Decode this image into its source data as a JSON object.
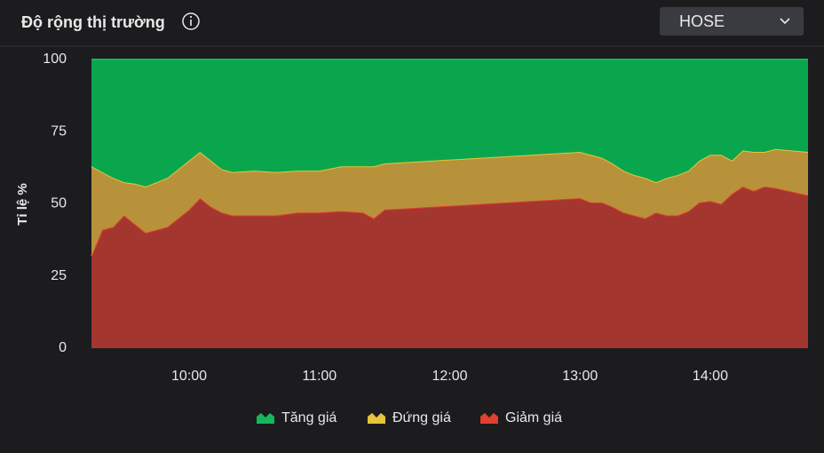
{
  "header": {
    "title": "Độ rộng thị trường",
    "selector": "HOSE"
  },
  "chart_data": {
    "type": "stacked_area",
    "y_label": "Tỉ lệ %",
    "x": [
      "09:15",
      "09:20",
      "09:25",
      "09:30",
      "09:35",
      "09:40",
      "09:45",
      "09:50",
      "09:55",
      "10:00",
      "10:05",
      "10:10",
      "10:15",
      "10:20",
      "10:30",
      "10:40",
      "10:50",
      "11:00",
      "11:10",
      "11:20",
      "11:25",
      "11:30",
      "13:00",
      "13:05",
      "13:10",
      "13:15",
      "13:20",
      "13:25",
      "13:30",
      "13:35",
      "13:40",
      "13:45",
      "13:50",
      "13:55",
      "14:00",
      "14:05",
      "14:10",
      "14:15",
      "14:20",
      "14:25",
      "14:30",
      "14:45"
    ],
    "xlim": [
      "09:15",
      "14:45"
    ],
    "xticks": [
      "10:00",
      "11:00",
      "12:00",
      "13:00",
      "14:00"
    ],
    "ylim": [
      0,
      100
    ],
    "yticks": [
      0,
      25,
      50,
      75,
      100
    ],
    "grid": false,
    "series": [
      {
        "name": "Tăng giá",
        "color": "#0aa64e",
        "line_color": "#14b85a",
        "values": [
          37,
          39,
          41,
          42.5,
          43,
          44,
          42.5,
          41,
          38,
          35,
          32,
          35,
          38,
          39,
          38.5,
          39,
          38.5,
          38.5,
          37,
          37,
          37,
          36,
          32,
          33,
          34,
          36,
          38.5,
          40,
          41,
          42.5,
          41,
          40,
          38.5,
          35,
          33,
          33,
          35,
          31.5,
          32,
          32,
          31,
          32
        ]
      },
      {
        "name": "Đứng giá",
        "color": "#b8923a",
        "line_color": "#e8c43a",
        "values": [
          31,
          20,
          17,
          11.5,
          14,
          16,
          16.5,
          17,
          17,
          17,
          16,
          16,
          15,
          15,
          15.5,
          15,
          14.5,
          14.5,
          15.5,
          16,
          18,
          16,
          16,
          16.5,
          15.5,
          15,
          14.5,
          14,
          14,
          10.5,
          13,
          14,
          14,
          14.5,
          16,
          17,
          11.5,
          12.5,
          13.5,
          12,
          13.5,
          15
        ]
      },
      {
        "name": "Giảm giá",
        "color": "#a43630",
        "line_color": "#e0402e",
        "values": [
          32,
          41,
          42,
          46,
          43,
          40,
          41,
          42,
          45,
          48,
          52,
          49,
          47,
          46,
          46,
          46,
          47,
          47,
          47.5,
          47,
          45,
          48,
          52,
          50.5,
          50.5,
          49,
          47,
          46,
          45,
          47,
          46,
          46,
          47.5,
          50.5,
          51,
          50,
          53.5,
          56,
          54.5,
          56,
          55.5,
          53
        ]
      }
    ],
    "legend": "bottom"
  }
}
